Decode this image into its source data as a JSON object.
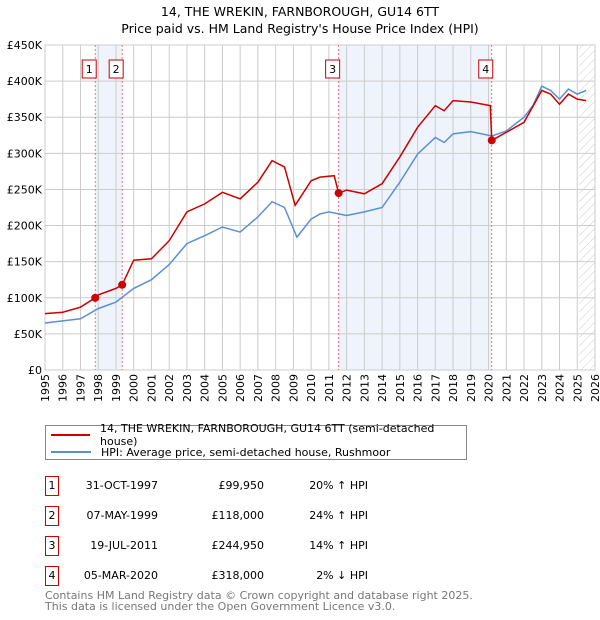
{
  "chart_data": {
    "type": "line",
    "title": "14, THE WREKIN, FARNBOROUGH, GU14 6TT",
    "subtitle": "Price paid vs. HM Land Registry's House Price Index (HPI)",
    "xlim": [
      1995,
      2026
    ],
    "ylim": [
      0,
      450000
    ],
    "grid": true,
    "x_ticks": [
      "1995",
      "1996",
      "1997",
      "1998",
      "1999",
      "2000",
      "2001",
      "2002",
      "2003",
      "2004",
      "2005",
      "2006",
      "2007",
      "2008",
      "2009",
      "2010",
      "2011",
      "2012",
      "2013",
      "2014",
      "2015",
      "2016",
      "2017",
      "2018",
      "2019",
      "2020",
      "2021",
      "2022",
      "2023",
      "2024",
      "2025",
      "2026"
    ],
    "y_ticks": [
      {
        "v": 0,
        "label": "£0"
      },
      {
        "v": 50000,
        "label": "£50K"
      },
      {
        "v": 100000,
        "label": "£100K"
      },
      {
        "v": 150000,
        "label": "£150K"
      },
      {
        "v": 200000,
        "label": "£200K"
      },
      {
        "v": 250000,
        "label": "£250K"
      },
      {
        "v": 300000,
        "label": "£300K"
      },
      {
        "v": 350000,
        "label": "£350K"
      },
      {
        "v": 400000,
        "label": "£400K"
      },
      {
        "v": 450000,
        "label": "£450K"
      }
    ],
    "series": [
      {
        "name": "14, THE WREKIN, FARNBOROUGH, GU14 6TT (semi-detached house)",
        "color": "#cc0000",
        "points": [
          [
            1995,
            78
          ],
          [
            1996,
            80
          ],
          [
            1997,
            87
          ],
          [
            1997.83,
            99.95
          ],
          [
            1998,
            104
          ],
          [
            1999,
            113
          ],
          [
            1999.35,
            118
          ],
          [
            2000,
            152
          ],
          [
            2001,
            154
          ],
          [
            2002,
            179
          ],
          [
            2003,
            219
          ],
          [
            2004,
            230
          ],
          [
            2005,
            246
          ],
          [
            2006,
            237
          ],
          [
            2007,
            260
          ],
          [
            2007.8,
            290
          ],
          [
            2008.5,
            281
          ],
          [
            2009.1,
            228
          ],
          [
            2010,
            262
          ],
          [
            2010.5,
            267
          ],
          [
            2011.3,
            269
          ],
          [
            2011.55,
            245
          ],
          [
            2012,
            249
          ],
          [
            2013,
            244
          ],
          [
            2014,
            258
          ],
          [
            2015,
            295
          ],
          [
            2016,
            336
          ],
          [
            2017,
            366
          ],
          [
            2017.5,
            359
          ],
          [
            2018,
            373
          ],
          [
            2019,
            371
          ],
          [
            2020.1,
            366
          ],
          [
            2020.18,
            318
          ],
          [
            2021,
            329
          ],
          [
            2022,
            343
          ],
          [
            2023,
            387
          ],
          [
            2023.5,
            382
          ],
          [
            2024,
            368
          ],
          [
            2024.5,
            382
          ],
          [
            2025,
            375
          ],
          [
            2025.5,
            373
          ]
        ]
      },
      {
        "name": "HPI: Average price, semi-detached house, Rushmoor",
        "color": "#5b8fd6",
        "points": [
          [
            1995,
            65
          ],
          [
            1996,
            68
          ],
          [
            1997,
            71
          ],
          [
            1998,
            85
          ],
          [
            1999,
            94
          ],
          [
            2000,
            113
          ],
          [
            2001,
            125
          ],
          [
            2002,
            146
          ],
          [
            2003,
            175
          ],
          [
            2004,
            186
          ],
          [
            2005,
            198
          ],
          [
            2006,
            191
          ],
          [
            2007,
            212
          ],
          [
            2007.8,
            233
          ],
          [
            2008.5,
            225
          ],
          [
            2009.2,
            184
          ],
          [
            2010,
            209
          ],
          [
            2010.5,
            216
          ],
          [
            2011,
            219
          ],
          [
            2012,
            214
          ],
          [
            2013,
            219
          ],
          [
            2014,
            225
          ],
          [
            2015,
            260
          ],
          [
            2016,
            299
          ],
          [
            2017,
            322
          ],
          [
            2017.5,
            315
          ],
          [
            2018,
            327
          ],
          [
            2019,
            330
          ],
          [
            2020.2,
            324
          ],
          [
            2021,
            331
          ],
          [
            2022,
            350
          ],
          [
            2022.5,
            366
          ],
          [
            2023,
            393
          ],
          [
            2023.5,
            387
          ],
          [
            2024,
            375
          ],
          [
            2024.5,
            389
          ],
          [
            2025,
            382
          ],
          [
            2025.5,
            387
          ]
        ]
      }
    ],
    "sales": [
      {
        "n": "1",
        "x": 1997.83,
        "y": 99.95,
        "date": "31-OCT-1997",
        "price": "£99,950",
        "hpi": "20% ↑ HPI"
      },
      {
        "n": "2",
        "x": 1999.35,
        "y": 118,
        "date": "07-MAY-1999",
        "price": "£118,000",
        "hpi": "24% ↑ HPI"
      },
      {
        "n": "3",
        "x": 2011.55,
        "y": 244.95,
        "date": "19-JUL-2011",
        "price": "£244,950",
        "hpi": "14% ↑ HPI"
      },
      {
        "n": "4",
        "x": 2020.18,
        "y": 318,
        "date": "05-MAR-2020",
        "price": "£318,000",
        "hpi": "2% ↓ HPI"
      }
    ],
    "shaded": [
      [
        1997.83,
        1999.35
      ],
      [
        2011.55,
        2020.18
      ]
    ],
    "forecast_from": 2025.1
  },
  "legend": {
    "red": "14, THE WREKIN, FARNBOROUGH, GU14 6TT (semi-detached house)",
    "blue": "HPI: Average price, semi-detached house, Rushmoor"
  },
  "footer": {
    "line1": "Contains HM Land Registry data © Crown copyright and database right 2025.",
    "line2": "This data is licensed under the Open Government Licence v3.0."
  }
}
